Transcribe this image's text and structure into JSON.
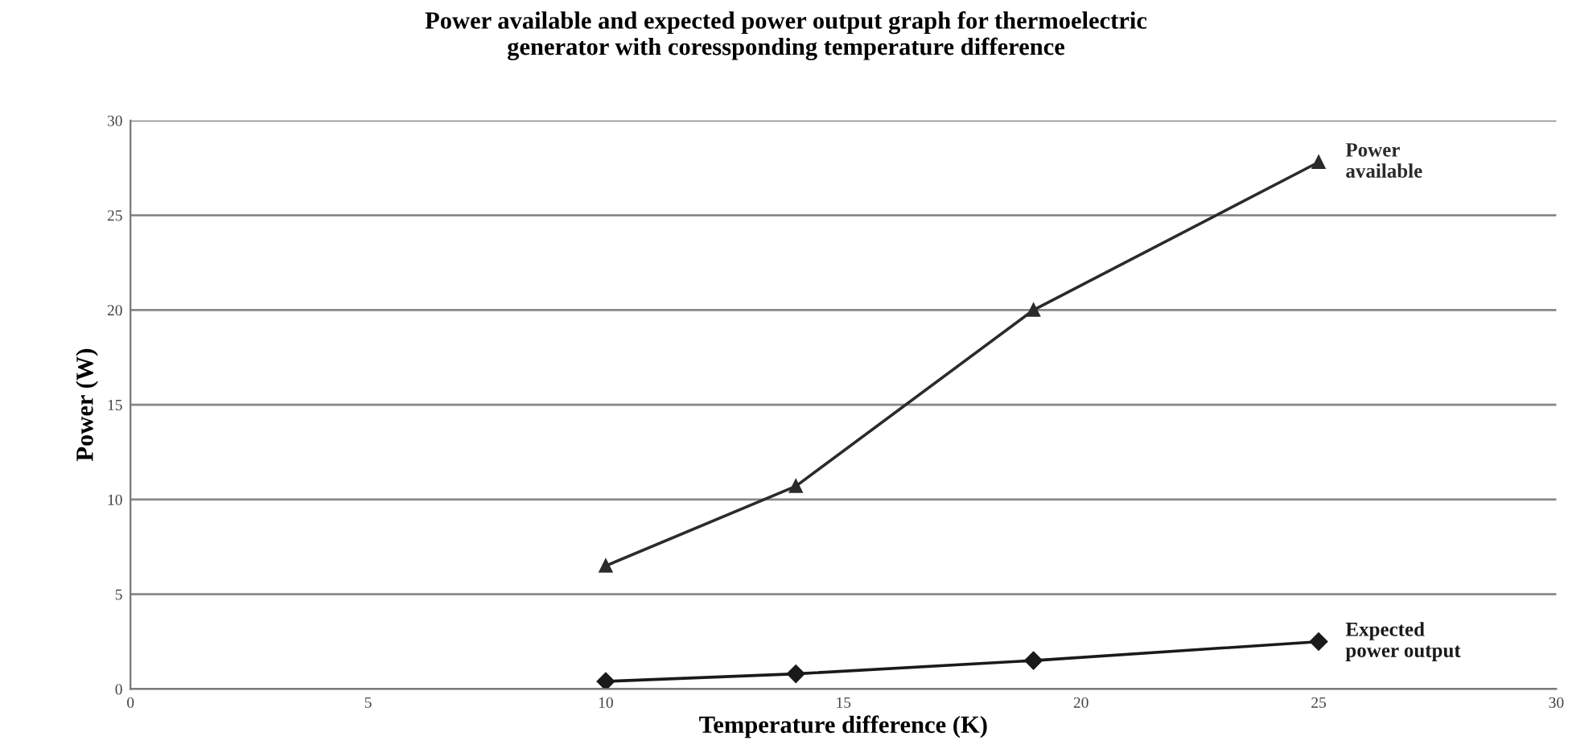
{
  "chart_data": {
    "type": "line",
    "title": "Power available and expected power output graph for thermoelectric\ngenerator with coressponding temperature difference",
    "xlabel": "Temperature difference (K)",
    "ylabel": "Power (W)",
    "x": [
      10,
      14,
      19,
      25
    ],
    "series": [
      {
        "name": "Power\navailable",
        "color": "#2b2b2b",
        "marker": "triangle",
        "values": [
          6.5,
          10.7,
          20,
          27.8
        ]
      },
      {
        "name": "Expected\npower output",
        "color": "#1a1a1a",
        "marker": "diamond",
        "values": [
          0.4,
          0.8,
          1.5,
          2.5
        ]
      }
    ],
    "xlim": [
      0,
      30
    ],
    "xticks": [
      0,
      5,
      10,
      15,
      20,
      25,
      30
    ],
    "ylim": [
      0,
      30
    ],
    "yticks": [
      0,
      5,
      10,
      15,
      20,
      25,
      30
    ],
    "grid": "y",
    "legend": false,
    "line_style": "solid"
  }
}
